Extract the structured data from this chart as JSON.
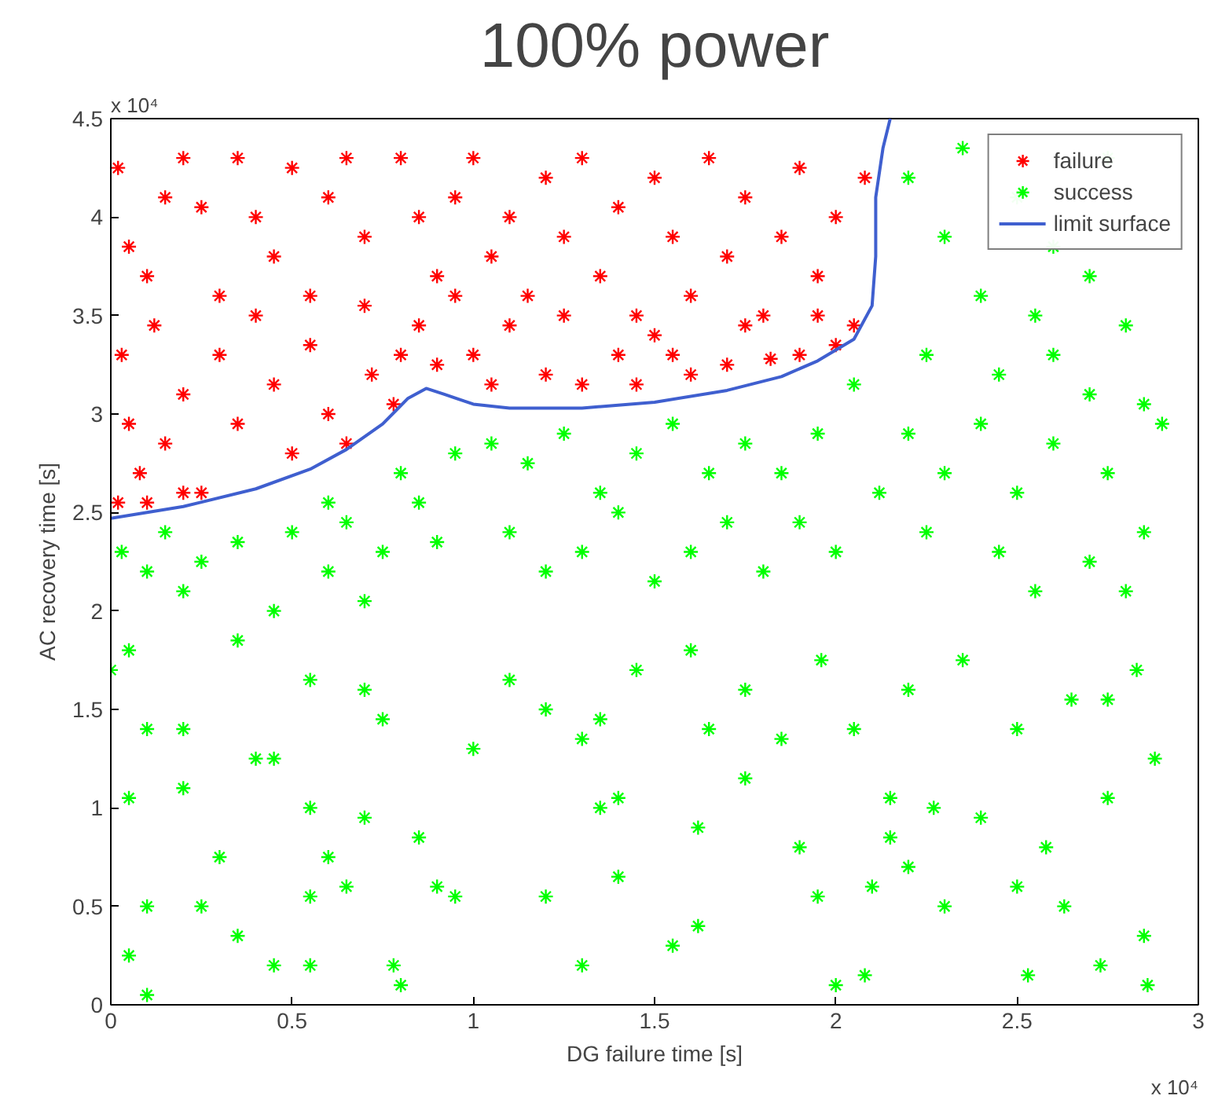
{
  "chart_data": {
    "type": "scatter",
    "title": "100% power",
    "xlabel": "DG failure time [s]",
    "ylabel": "AC recovery time [s]",
    "annotations": [
      "x 10⁴",
      "x 10⁴"
    ],
    "xlim": [
      0,
      3
    ],
    "ylim": [
      0,
      4.5
    ],
    "xticks": [
      0,
      0.5,
      1,
      1.5,
      2,
      2.5,
      3
    ],
    "yticks": [
      0,
      0.5,
      1,
      1.5,
      2,
      2.5,
      3,
      3.5,
      4,
      4.5
    ],
    "grid": false,
    "legend": "top right",
    "series": [
      {
        "name": "failure",
        "color": "#ff0000",
        "marker": "cross",
        "x": [
          0.02,
          0.05,
          0.1,
          0.15,
          0.2,
          0.25,
          0.3,
          0.35,
          0.4,
          0.45,
          0.5,
          0.55,
          0.6,
          0.65,
          0.7,
          0.8,
          0.85,
          0.9,
          0.95,
          1.0,
          1.05,
          1.1,
          1.15,
          1.2,
          1.25,
          1.3,
          1.35,
          1.4,
          1.45,
          1.5,
          1.55,
          1.6,
          1.65,
          1.7,
          1.75,
          1.8,
          1.85,
          1.9,
          1.95,
          2.0,
          2.05,
          2.08,
          0.03,
          0.05,
          0.08,
          0.12,
          0.15,
          0.2,
          0.25,
          0.3,
          0.35,
          0.4,
          0.45,
          0.5,
          0.55,
          0.6,
          0.65,
          0.7,
          0.72,
          0.78,
          0.8,
          0.85,
          0.9,
          0.95,
          1.0,
          1.05,
          1.1,
          1.2,
          1.25,
          1.3,
          1.4,
          1.45,
          1.5,
          1.55,
          1.6,
          1.7,
          1.75,
          1.82,
          1.9,
          1.95,
          2.0,
          0.02,
          0.1,
          0.2
        ],
        "values": [
          4.25,
          3.85,
          3.7,
          4.1,
          4.3,
          4.05,
          3.6,
          4.3,
          4.0,
          3.8,
          4.25,
          3.6,
          4.1,
          4.3,
          3.9,
          4.3,
          4.0,
          3.7,
          4.1,
          4.3,
          3.8,
          4.0,
          3.6,
          4.2,
          3.9,
          4.3,
          3.7,
          4.05,
          3.5,
          4.2,
          3.9,
          3.6,
          4.3,
          3.8,
          4.1,
          3.5,
          3.9,
          4.25,
          3.7,
          4.0,
          3.45,
          4.2,
          3.3,
          2.95,
          2.7,
          3.45,
          2.85,
          3.1,
          2.6,
          3.3,
          2.95,
          3.5,
          3.15,
          2.8,
          3.35,
          3.0,
          2.85,
          3.55,
          3.2,
          3.05,
          3.3,
          3.45,
          3.25,
          3.6,
          3.3,
          3.15,
          3.45,
          3.2,
          3.5,
          3.15,
          3.3,
          3.15,
          3.4,
          3.3,
          3.2,
          3.25,
          3.45,
          3.28,
          3.3,
          3.5,
          3.35,
          2.55,
          2.55,
          2.6
        ]
      },
      {
        "name": "success",
        "color": "#00ff00",
        "marker": "cross",
        "x": [
          2.2,
          2.3,
          2.35,
          2.4,
          2.5,
          2.55,
          2.6,
          2.7,
          2.75,
          2.8,
          2.25,
          2.45,
          2.6,
          2.7,
          2.85,
          2.2,
          2.3,
          2.4,
          2.5,
          2.6,
          2.75,
          2.85,
          2.9,
          2.25,
          2.45,
          2.55,
          2.7,
          2.8,
          2.35,
          2.2,
          2.5,
          2.65,
          2.75,
          2.83,
          2.88,
          2.27,
          2.4,
          2.58,
          2.75,
          2.5,
          2.3,
          2.63,
          2.85,
          2.73,
          2.53,
          2.86,
          2.15,
          2.2,
          1.05,
          1.15,
          1.25,
          1.35,
          1.45,
          1.55,
          1.65,
          1.75,
          1.85,
          1.95,
          2.05,
          2.12,
          1.1,
          1.2,
          1.3,
          1.4,
          1.5,
          1.6,
          1.7,
          1.8,
          1.9,
          2.0,
          1.1,
          1.2,
          1.3,
          1.35,
          1.4,
          1.35,
          1.45,
          1.6,
          1.65,
          1.75,
          1.85,
          1.96,
          2.05,
          1.62,
          1.75,
          1.9,
          1.95,
          2.1,
          2.15,
          1.62,
          1.55,
          1.4,
          1.3,
          2.0,
          2.08,
          1.2,
          1.0,
          0.95,
          0.0,
          0.03,
          0.05,
          0.1,
          0.15,
          0.2,
          0.25,
          0.35,
          0.45,
          0.5,
          0.6,
          0.65,
          0.7,
          0.75,
          0.85,
          0.9,
          0.95,
          0.8,
          0.6,
          0.1,
          0.2,
          0.35,
          0.45,
          0.55,
          0.7,
          0.75,
          0.05,
          0.2,
          0.3,
          0.4,
          0.55,
          0.6,
          0.7,
          0.85,
          0.1,
          0.25,
          0.35,
          0.55,
          0.65,
          0.78,
          0.9,
          0.05,
          0.1,
          0.55,
          0.45,
          0.8
        ],
        "values": [
          4.2,
          3.9,
          4.35,
          3.6,
          4.1,
          3.5,
          3.85,
          3.7,
          4.3,
          3.45,
          3.3,
          3.2,
          3.3,
          3.1,
          3.05,
          2.9,
          2.7,
          2.95,
          2.6,
          2.85,
          2.7,
          2.4,
          2.95,
          2.4,
          2.3,
          2.1,
          2.25,
          2.1,
          1.75,
          1.6,
          1.4,
          1.55,
          1.55,
          1.7,
          1.25,
          1.0,
          0.95,
          0.8,
          1.05,
          0.6,
          0.5,
          0.5,
          0.35,
          0.2,
          0.15,
          0.1,
          1.05,
          0.7,
          2.85,
          2.75,
          2.9,
          2.6,
          2.8,
          2.95,
          2.7,
          2.85,
          2.7,
          2.9,
          3.15,
          2.6,
          2.4,
          2.2,
          2.3,
          2.5,
          2.15,
          2.3,
          2.45,
          2.2,
          2.45,
          2.3,
          1.65,
          1.5,
          1.35,
          1.45,
          1.05,
          1.0,
          1.7,
          1.8,
          1.4,
          1.6,
          1.35,
          1.75,
          1.4,
          0.9,
          1.15,
          0.8,
          0.55,
          0.6,
          0.85,
          0.4,
          0.3,
          0.65,
          0.2,
          0.1,
          0.15,
          0.55,
          1.3,
          0.55,
          1.7,
          2.3,
          1.8,
          2.2,
          2.4,
          2.1,
          2.25,
          2.35,
          2.0,
          2.4,
          2.2,
          2.45,
          2.05,
          2.3,
          2.55,
          2.35,
          2.8,
          2.7,
          2.55,
          1.4,
          1.4,
          1.85,
          1.25,
          1.65,
          1.6,
          1.45,
          1.05,
          1.1,
          0.75,
          1.25,
          1.0,
          0.75,
          0.95,
          0.85,
          0.5,
          0.5,
          0.35,
          0.55,
          0.6,
          0.2,
          0.6,
          0.25,
          0.05,
          0.2,
          0.2,
          0.1
        ]
      },
      {
        "name": "limit surface",
        "color": "#3f5fcf",
        "type": "line",
        "marker": "none",
        "line_style": "solid",
        "x": [
          0,
          0.2,
          0.4,
          0.55,
          0.65,
          0.75,
          0.82,
          0.87,
          0.92,
          1.0,
          1.1,
          1.3,
          1.5,
          1.7,
          1.85,
          1.95,
          2.05,
          2.1,
          2.11,
          2.11,
          2.13,
          2.15
        ],
        "values": [
          2.47,
          2.53,
          2.62,
          2.72,
          2.82,
          2.95,
          3.08,
          3.13,
          3.1,
          3.05,
          3.03,
          3.03,
          3.06,
          3.12,
          3.19,
          3.27,
          3.38,
          3.55,
          3.8,
          4.1,
          4.35,
          4.5
        ]
      }
    ]
  }
}
